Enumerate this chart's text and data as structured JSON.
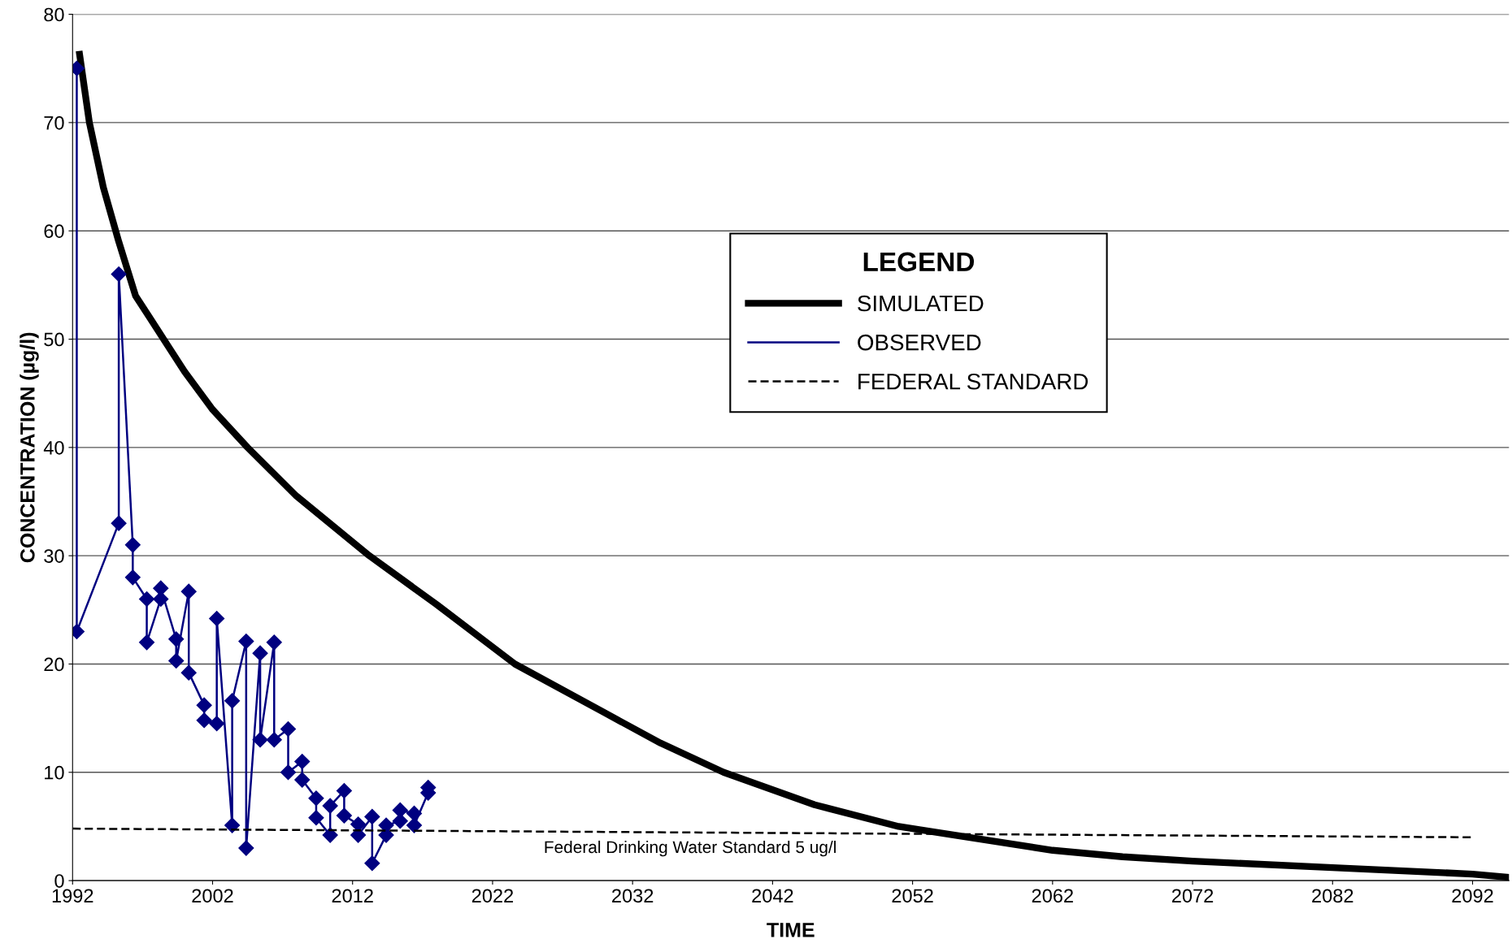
{
  "chart_data": {
    "type": "line",
    "xlabel": "TIME",
    "ylabel": "CONCENTRATION (µg/l)",
    "legend_title": "LEGEND",
    "xlim": [
      1992,
      2094.6
    ],
    "xticks": [
      1992,
      2002,
      2012,
      2022,
      2032,
      2042,
      2052,
      2062,
      2072,
      2082,
      2092
    ],
    "ylim": [
      0,
      80
    ],
    "yticks": [
      0,
      10,
      20,
      30,
      40,
      50,
      60,
      70,
      80
    ],
    "grid": "y",
    "legend": "top",
    "series": [
      {
        "name": "SIMULATED",
        "color": "#000000",
        "line_style": "solid",
        "marker": "none",
        "x": [
          1992.5,
          1993.2,
          1994.2,
          1995.3,
          1996.5,
          1997.5,
          1998.5,
          2000,
          2002,
          2004.5,
          2008,
          2013.2,
          2018,
          2023.6,
          2030,
          2034,
          2038.5,
          2045,
          2051,
          2055,
          2062,
          2067,
          2072,
          2082,
          2092,
          2094.6
        ],
        "values": [
          76.3,
          70,
          64,
          59,
          54,
          52,
          50,
          47,
          43.5,
          40,
          35.5,
          30,
          25.5,
          20,
          15.5,
          12.7,
          10,
          7,
          5,
          4.2,
          2.8,
          2.2,
          1.8,
          1.2,
          0.6,
          0.3
        ]
      },
      {
        "name": "OBSERVED",
        "color": "#000080",
        "line_style": "solid",
        "marker": "diamond",
        "x": [
          1992.3,
          1992.3,
          1995.3,
          1995.3,
          1996.3,
          1996.3,
          1997.3,
          1997.3,
          1998.3,
          1998.3,
          1999.4,
          1999.4,
          2000.3,
          2000.3,
          2001.4,
          2001.4,
          2002.3,
          2002.3,
          2003.4,
          2003.4,
          2004.4,
          2004.4,
          2005.4,
          2005.4,
          2006.4,
          2006.4,
          2007.4,
          2007.4,
          2008.4,
          2008.4,
          2009.4,
          2009.4,
          2010.4,
          2010.4,
          2011.4,
          2011.4,
          2012.4,
          2012.4,
          2013.4,
          2013.4,
          2014.4,
          2014.4,
          2015.4,
          2015.4,
          2016.4,
          2016.4,
          2017.4,
          2017.4
        ],
        "values": [
          75,
          23,
          33,
          56,
          31,
          28,
          26,
          22,
          26,
          27,
          22.3,
          20.3,
          26.7,
          19.2,
          16.2,
          14.8,
          14.5,
          24.2,
          5.1,
          16.6,
          22.1,
          3.0,
          21,
          13,
          22,
          13,
          14,
          10,
          11,
          9.3,
          7.6,
          5.8,
          4.2,
          6.9,
          8.3,
          6.0,
          5.2,
          4.2,
          5.9,
          1.6,
          4.2,
          5.1,
          5.5,
          6.5,
          6.2,
          5.1,
          8.1,
          8.6
        ]
      },
      {
        "name": "FEDERAL STANDARD",
        "color": "#000000",
        "line_style": "dashed",
        "marker": "none",
        "x": [
          1992,
          2092
        ],
        "values": [
          4.8,
          4.0
        ]
      }
    ],
    "annotations": [
      "Federal Drinking Water Standard 5 ug/l"
    ]
  }
}
